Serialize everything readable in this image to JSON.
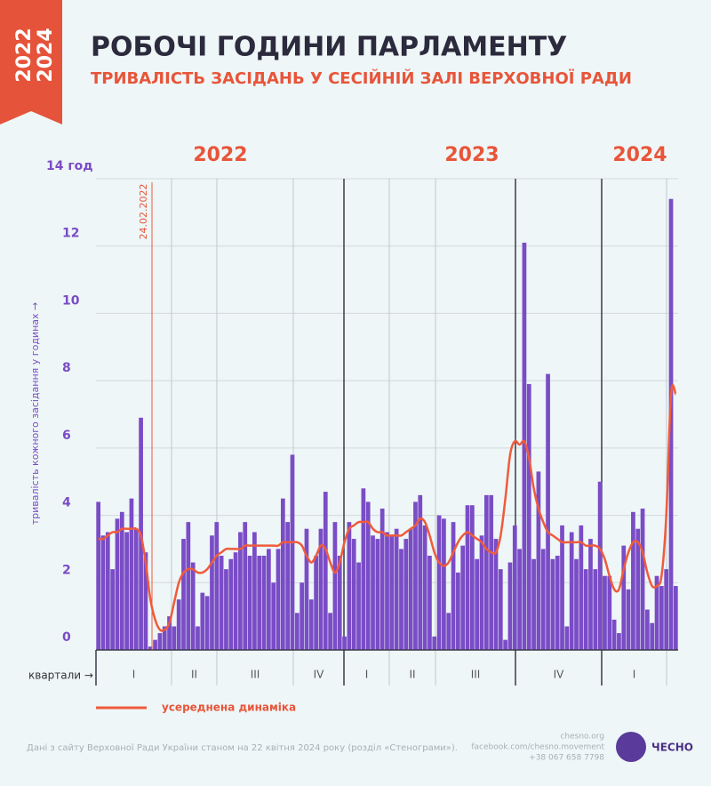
{
  "tag": [
    "2022",
    "2024"
  ],
  "chart_data": {
    "type": "bar",
    "title": "РОБОЧІ ГОДИНИ ПАРЛАМЕНТУ",
    "subtitle": "ТРИВАЛІСТЬ ЗАСІДАНЬ У СЕСІЙНІЙ ЗАЛІ ВЕРХОВНОЇ РАДИ",
    "y_label": "тривалість кожного засідання у годинах →",
    "x_label": "квартали →",
    "years": [
      "2022",
      "2023",
      "2024"
    ],
    "quarters": [
      "I",
      "II",
      "III",
      "IV",
      "I",
      "II",
      "III",
      "IV",
      "I"
    ],
    "annotation": "24.02.2022",
    "color": "#7a4cc6",
    "ylim": [
      0,
      14
    ],
    "yticks": [
      0,
      2,
      4,
      6,
      8,
      10,
      12,
      {
        "value": 14,
        "label": "14 год"
      }
    ],
    "grid": true,
    "values": [
      4.4,
      3.4,
      3.5,
      2.4,
      3.9,
      4.1,
      3.5,
      4.5,
      3.6,
      6.9,
      2.9,
      0.1,
      0.3,
      0.5,
      0.7,
      1.0,
      0.7,
      1.5,
      3.3,
      3.8,
      2.6,
      0.7,
      1.7,
      1.6,
      3.4,
      3.8,
      2.8,
      2.4,
      2.7,
      2.9,
      3.5,
      3.8,
      2.8,
      3.5,
      2.8,
      2.8,
      3.0,
      2.0,
      3.0,
      4.5,
      3.8,
      5.8,
      1.1,
      2.0,
      3.6,
      1.5,
      2.8,
      3.6,
      4.7,
      1.1,
      3.8,
      2.8,
      0.4,
      3.8,
      3.3,
      2.6,
      4.8,
      4.4,
      3.4,
      3.3,
      4.2,
      3.5,
      3.4,
      3.6,
      3.0,
      3.3,
      3.6,
      4.4,
      4.6,
      3.7,
      2.8,
      0.4,
      4.0,
      3.9,
      1.1,
      3.8,
      2.3,
      3.1,
      4.3,
      4.3,
      2.7,
      3.4,
      4.6,
      4.6,
      3.3,
      2.4,
      0.3,
      2.6,
      3.7,
      3.0,
      12.1,
      7.9,
      2.7,
      5.3,
      3.0,
      8.2,
      2.7,
      2.8,
      3.7,
      0.7,
      3.5,
      2.7,
      3.7,
      2.4,
      3.3,
      2.4,
      5.0,
      2.2,
      2.2,
      0.9,
      0.5,
      3.1,
      1.8,
      4.1,
      3.6,
      4.2,
      1.2,
      0.8,
      2.2,
      1.9,
      2.4,
      13.4,
      1.9
    ],
    "series": [
      {
        "name": "усереднена динаміка",
        "color": "#ef5b3c",
        "values": [
          3.3,
          3.3,
          3.4,
          3.5,
          3.5,
          3.6,
          3.6,
          3.6,
          3.6,
          3.4,
          2.6,
          1.5,
          0.9,
          0.6,
          0.6,
          0.8,
          1.4,
          2.0,
          2.3,
          2.4,
          2.4,
          2.3,
          2.3,
          2.4,
          2.6,
          2.8,
          2.9,
          3.0,
          3.0,
          3.0,
          3.0,
          3.1,
          3.1,
          3.1,
          3.1,
          3.1,
          3.1,
          3.1,
          3.1,
          3.2,
          3.2,
          3.2,
          3.2,
          3.1,
          2.8,
          2.6,
          2.8,
          3.1,
          3.0,
          2.6,
          2.3,
          2.6,
          3.2,
          3.6,
          3.7,
          3.8,
          3.8,
          3.8,
          3.6,
          3.5,
          3.5,
          3.4,
          3.4,
          3.4,
          3.4,
          3.5,
          3.6,
          3.7,
          3.9,
          3.8,
          3.4,
          2.9,
          2.6,
          2.5,
          2.6,
          2.9,
          3.2,
          3.4,
          3.5,
          3.4,
          3.3,
          3.2,
          3.0,
          2.9,
          2.9,
          3.4,
          4.5,
          5.8,
          6.2,
          6.1,
          6.2,
          5.7,
          4.8,
          4.2,
          3.8,
          3.5,
          3.4,
          3.3,
          3.2,
          3.2,
          3.2,
          3.2,
          3.2,
          3.1,
          3.1,
          3.1,
          3.0,
          2.7,
          2.2,
          1.8,
          1.8,
          2.4,
          2.9,
          3.2,
          3.2,
          2.9,
          2.3,
          1.9,
          1.9,
          2.2,
          4.0,
          7.6,
          7.6
        ]
      }
    ]
  },
  "footer": {
    "source": "Дані з сайту Верховної Ради України станом на 22 квітня 2024 року (розділ «Стенограми»).",
    "contacts": [
      "chesno.org",
      "facebook.com/chesno.movement",
      "+38 067 658 7798"
    ],
    "logo": "ЧЕСНО"
  }
}
